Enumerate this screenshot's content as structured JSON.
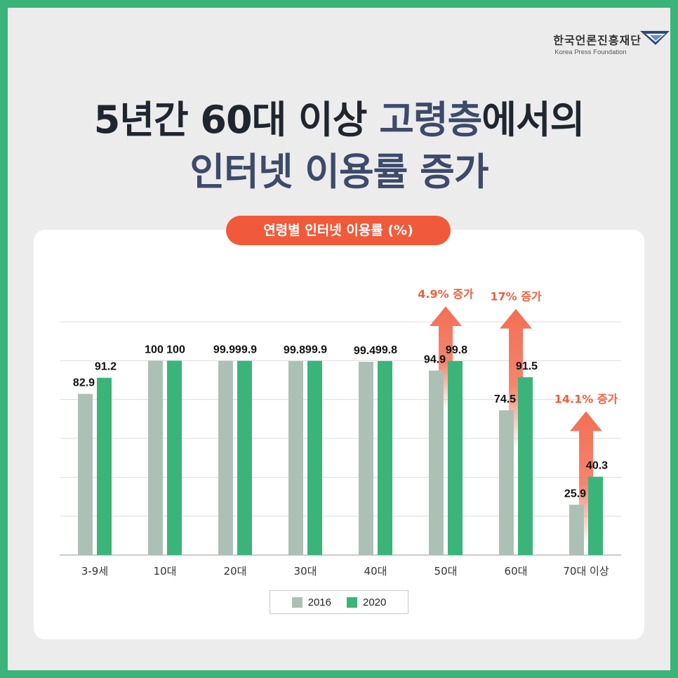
{
  "logo": {
    "korean": "한국언론진흥재단",
    "english": "Korea Press Foundation"
  },
  "title": {
    "line1_a": "5년간 60대 이상 ",
    "line1_b": "고령층",
    "line1_c": "에서의",
    "line2": "인터넷 이용률 증가"
  },
  "chart_data": {
    "type": "bar",
    "title": "연령별 인터넷 이용률 (%)",
    "categories": [
      "3-9세",
      "10대",
      "20대",
      "30대",
      "40대",
      "50대",
      "60대",
      "70대 이상"
    ],
    "series": [
      {
        "name": "2016",
        "values": [
          82.9,
          100,
          99.9,
          99.8,
          99.4,
          94.9,
          74.5,
          25.9
        ],
        "labels": [
          "82.9",
          "100",
          "99.9",
          "99.8",
          "99.4",
          "94.9",
          "74.5",
          "25.9"
        ]
      },
      {
        "name": "2020",
        "values": [
          91.2,
          100,
          99.9,
          99.9,
          99.8,
          99.8,
          91.5,
          40.3
        ],
        "labels": [
          "91.2",
          "100",
          "99.9",
          "99.9",
          "99.8",
          "99.8",
          "91.5",
          "40.3"
        ]
      }
    ],
    "ylim": [
      0,
      120
    ],
    "grid": true,
    "legend": "bottom-center",
    "annotations": [
      {
        "category": "50대",
        "text": "4.9% 증가"
      },
      {
        "category": "60대",
        "text": "17% 증가"
      },
      {
        "category": "70대 이상",
        "text": "14.1% 증가"
      }
    ],
    "colors": {
      "2016": "#adc0b6",
      "2020": "#3bb47a",
      "arrow": "#f26f55",
      "annotation_text": "#ef6140"
    }
  }
}
